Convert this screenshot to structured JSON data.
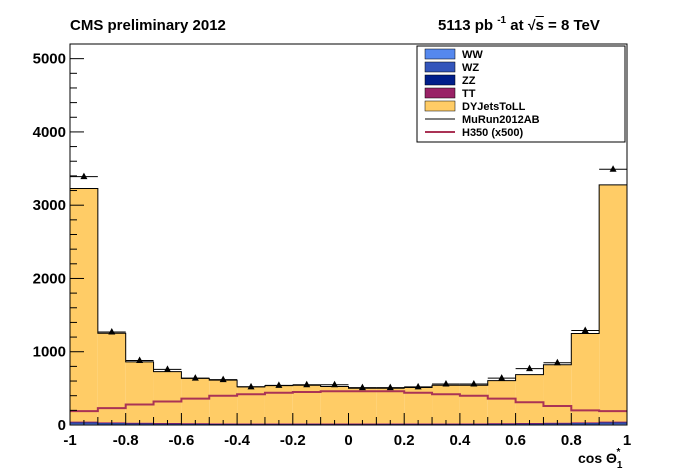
{
  "header": {
    "left": "CMS preliminary 2012",
    "lumi_value": "5113 pb",
    "lumi_exp": "-1",
    "at": "at",
    "sqrt": "√",
    "s": "s",
    "energy": "= 8 TeV"
  },
  "chart_data": {
    "type": "bar",
    "stacked": true,
    "x_edges": [
      -1.0,
      -0.9,
      -0.8,
      -0.7,
      -0.6,
      -0.5,
      -0.4,
      -0.3,
      -0.2,
      -0.1,
      0.0,
      0.1,
      0.2,
      0.3,
      0.4,
      0.5,
      0.6,
      0.7,
      0.8,
      0.9,
      1.0
    ],
    "xlim": [
      -1,
      1
    ],
    "ylim": [
      0,
      5200
    ],
    "x_ticks": [
      "-1",
      "-0.8",
      "-0.6",
      "-0.4",
      "-0.2",
      "0",
      "0.2",
      "0.4",
      "0.6",
      "0.8",
      "1"
    ],
    "y_ticks": [
      "0",
      "1000",
      "2000",
      "3000",
      "4000",
      "5000"
    ],
    "xlabel": "cos Θ",
    "xlabel_sub": "1",
    "xlabel_sup": "*",
    "series": [
      {
        "name": "WW",
        "color": "#5588ee",
        "values": [
          12,
          10,
          8,
          7,
          6,
          6,
          5,
          5,
          5,
          5,
          5,
          5,
          5,
          5,
          6,
          6,
          7,
          8,
          10,
          12
        ]
      },
      {
        "name": "WZ",
        "color": "#3355bb",
        "values": [
          10,
          8,
          7,
          6,
          6,
          5,
          5,
          5,
          5,
          5,
          5,
          5,
          5,
          5,
          5,
          6,
          6,
          7,
          8,
          10
        ]
      },
      {
        "name": "ZZ",
        "color": "#001e8a",
        "values": [
          15,
          12,
          10,
          9,
          8,
          7,
          7,
          7,
          7,
          6,
          6,
          7,
          7,
          7,
          7,
          8,
          9,
          10,
          12,
          15
        ]
      },
      {
        "name": "TT",
        "color": "#992266",
        "values": [
          10,
          8,
          7,
          6,
          6,
          5,
          5,
          5,
          5,
          5,
          5,
          5,
          5,
          5,
          5,
          6,
          6,
          7,
          8,
          10
        ]
      },
      {
        "name": "DYJetsToLL",
        "color": "#ffcc66",
        "values": [
          3180,
          1215,
          830,
          700,
          610,
          590,
          500,
          515,
          520,
          505,
          480,
          480,
          490,
          520,
          520,
          580,
          660,
          790,
          1210,
          3230
        ]
      }
    ],
    "data": {
      "name": "MuRun2012AB",
      "values": [
        3390,
        1270,
        880,
        760,
        640,
        620,
        520,
        540,
        550,
        550,
        510,
        510,
        520,
        560,
        560,
        640,
        770,
        850,
        1290,
        3490
      ]
    },
    "signal": {
      "name": "H350 (x500)",
      "color": "#aa3355",
      "values": [
        190,
        230,
        280,
        320,
        360,
        400,
        420,
        440,
        450,
        460,
        460,
        460,
        440,
        420,
        400,
        360,
        310,
        260,
        200,
        190
      ]
    }
  }
}
